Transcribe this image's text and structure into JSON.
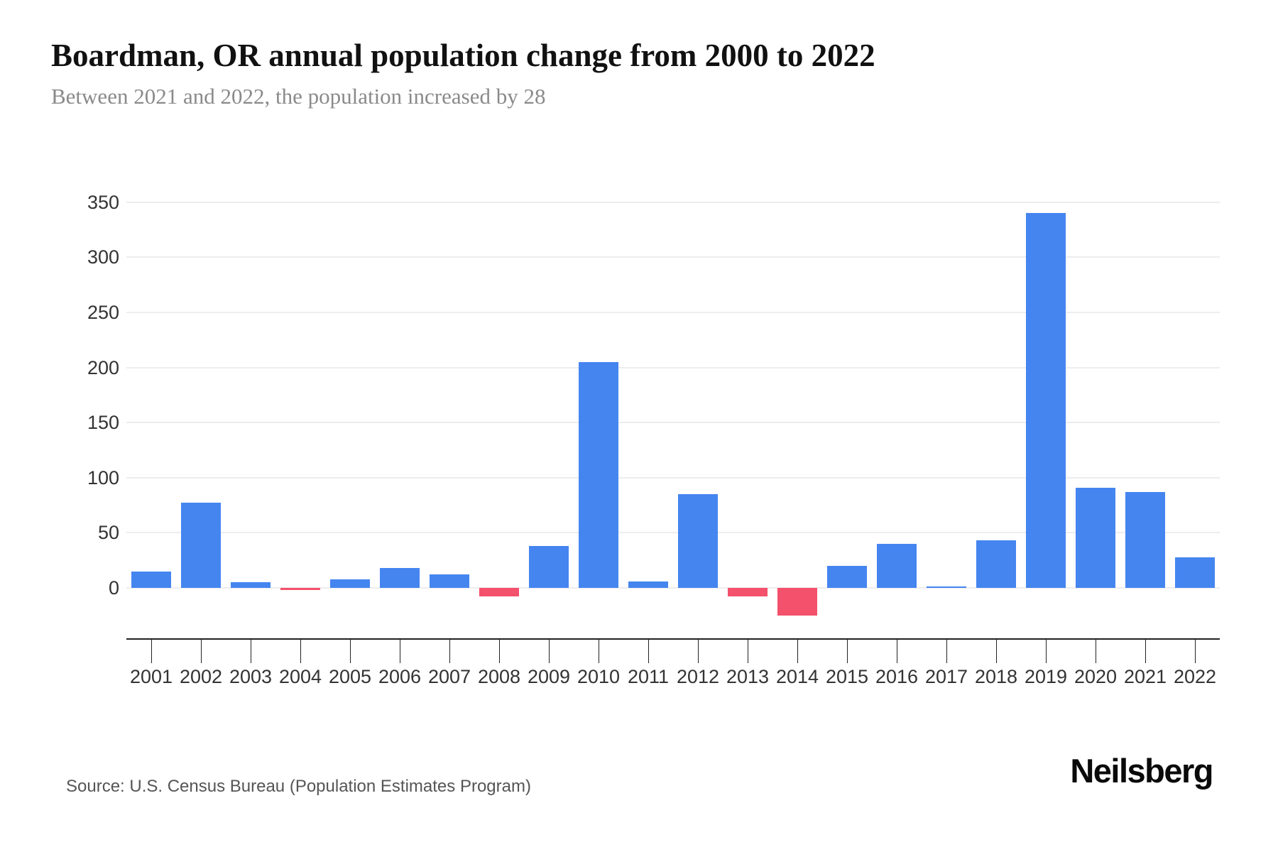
{
  "header": {
    "title": "Boardman, OR annual population change from 2000 to 2022",
    "subtitle": "Between 2021 and 2022, the population increased by 28"
  },
  "footer": {
    "source": "Source: U.S. Census Bureau (Population Estimates Program)",
    "brand": "Neilsberg"
  },
  "chart_data": {
    "type": "bar",
    "title": "Boardman, OR annual population change from 2000 to 2022",
    "subtitle": "Between 2021 and 2022, the population increased by 28",
    "xlabel": "",
    "ylabel": "",
    "categories": [
      "2001",
      "2002",
      "2003",
      "2004",
      "2005",
      "2006",
      "2007",
      "2008",
      "2009",
      "2010",
      "2011",
      "2012",
      "2013",
      "2014",
      "2015",
      "2016",
      "2017",
      "2018",
      "2019",
      "2020",
      "2021",
      "2022"
    ],
    "values": [
      15,
      77,
      5,
      -2,
      8,
      18,
      12,
      -8,
      38,
      205,
      6,
      85,
      -8,
      -25,
      20,
      40,
      1,
      43,
      340,
      91,
      87,
      28
    ],
    "yticks": [
      0,
      50,
      100,
      150,
      200,
      250,
      300,
      350
    ],
    "ylim": [
      -40,
      360
    ],
    "grid": "horizontal",
    "legend": "none",
    "colors": {
      "positive_bar": "#4585F0",
      "negative_bar": "#F4516C",
      "gridline": "#ededed",
      "axis": "#222222",
      "tick_label": "#333333"
    }
  }
}
